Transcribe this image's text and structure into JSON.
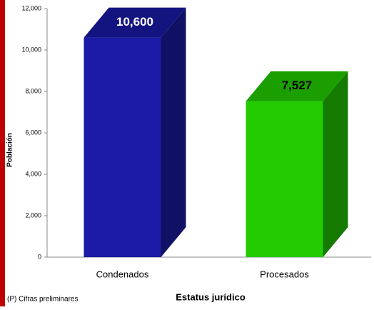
{
  "chart_data": {
    "type": "bar3d",
    "categories": [
      "Condenados",
      "Procesados"
    ],
    "values": [
      10600,
      7527
    ],
    "value_labels": [
      "10,600",
      "7,527"
    ],
    "colors": [
      "#1a1aa6",
      "#22cc00"
    ],
    "ylim": [
      0,
      12000
    ],
    "yticks": [
      0,
      {
        "value": 2000,
        "label": "2,000"
      },
      {
        "value": 4000,
        "label": "4,000"
      },
      {
        "value": 6000,
        "label": "6,000"
      },
      {
        "value": 8000,
        "label": "8,000"
      },
      {
        "value": 10000,
        "label": "10,000"
      },
      {
        "value": 12000,
        "label": "12,000"
      }
    ],
    "ylabel": "Población",
    "xlabel": "Estatus jurídico",
    "note": "(P) Cifras preliminares"
  }
}
